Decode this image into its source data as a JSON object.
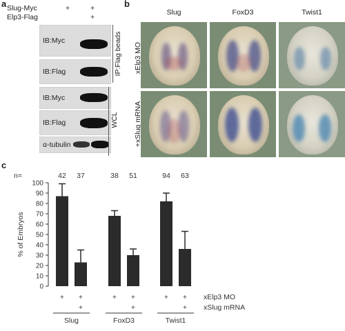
{
  "panel_a": {
    "letter": "a",
    "row_labels": [
      "Slug-Myc",
      "Elp3-Flag"
    ],
    "lane_marks": [
      [
        "+",
        "+"
      ],
      [
        "",
        "+"
      ]
    ],
    "blots": [
      "IB:Myc",
      "IB:Flag",
      "IB:Myc",
      "IB:Flag",
      "α-tubulin"
    ],
    "group_labels": [
      "IP:Flag beads",
      "WCL"
    ]
  },
  "panel_b": {
    "letter": "b",
    "columns": [
      "Slug",
      "FoxD3",
      "Twist1"
    ],
    "rows": [
      "xElp3 MO",
      "+xSlug mRNA"
    ],
    "stain_color": "#3c5a9a"
  },
  "panel_c": {
    "letter": "c",
    "n_label": "n=",
    "conditions": [
      "xElp3 MO",
      "xSlug mRNA"
    ],
    "plus": "+"
  },
  "chart_data": {
    "type": "bar",
    "ylabel": "% of Embryos",
    "ylim": [
      0,
      100
    ],
    "yticks": [
      0,
      10,
      20,
      30,
      40,
      50,
      60,
      70,
      80,
      90,
      100
    ],
    "groups": [
      "Slug",
      "FoxD3",
      "Twist1"
    ],
    "bars": [
      {
        "group": "Slug",
        "n": "42",
        "value": 87,
        "error": 12,
        "mo": "+",
        "mrna": ""
      },
      {
        "group": "Slug",
        "n": "37",
        "value": 23,
        "error": 12,
        "mo": "+",
        "mrna": "+"
      },
      {
        "group": "FoxD3",
        "n": "38",
        "value": 68,
        "error": 5,
        "mo": "+",
        "mrna": ""
      },
      {
        "group": "FoxD3",
        "n": "51",
        "value": 30,
        "error": 6,
        "mo": "+",
        "mrna": "+"
      },
      {
        "group": "Twist1",
        "n": "94",
        "value": 82,
        "error": 8,
        "mo": "+",
        "mrna": ""
      },
      {
        "group": "Twist1",
        "n": "63",
        "value": 36,
        "error": 17,
        "mo": "+",
        "mrna": "+"
      }
    ],
    "bar_color": "#2b2b2b"
  }
}
